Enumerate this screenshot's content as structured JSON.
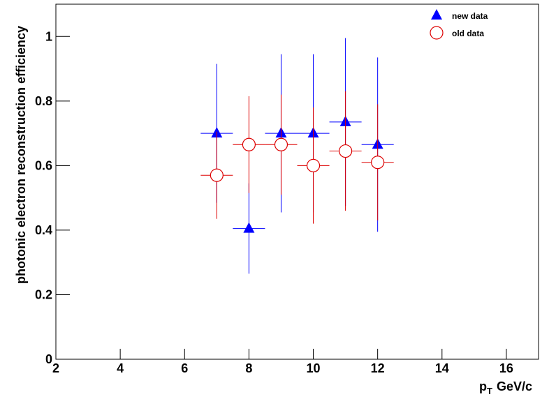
{
  "chart_data": {
    "type": "errorbar-scatter",
    "xlabel": {
      "text": "p",
      "subscript": "T",
      "suffix": "GeV/c"
    },
    "ylabel": "photonic electron reconstruction efficiency",
    "xlim": [
      2,
      17
    ],
    "ylim": [
      0,
      1.1
    ],
    "xticks": [
      2,
      4,
      6,
      8,
      10,
      12,
      14,
      16
    ],
    "yticks": [
      0,
      0.2,
      0.4,
      0.6,
      0.8,
      1
    ],
    "legend": "top-right",
    "series": [
      {
        "name": "new data",
        "color": "#0000ff",
        "marker": "triangle",
        "x": [
          7,
          8,
          9,
          10,
          11,
          12
        ],
        "x_errors": [
          0.5,
          0.5,
          0.5,
          0.5,
          0.5,
          0.5
        ],
        "values": [
          0.7,
          0.405,
          0.7,
          0.7,
          0.735,
          0.665
        ],
        "errors": [
          0.215,
          0.14,
          0.245,
          0.245,
          0.26,
          0.27
        ]
      },
      {
        "name": "old data",
        "color": "#dd0000",
        "marker": "open-circle",
        "x": [
          7,
          8,
          9,
          10,
          11,
          12
        ],
        "x_errors": [
          0.5,
          0.5,
          0.5,
          0.5,
          0.5,
          0.5
        ],
        "values": [
          0.57,
          0.665,
          0.665,
          0.6,
          0.645,
          0.61
        ],
        "errors": [
          0.135,
          0.15,
          0.155,
          0.18,
          0.185,
          0.18
        ]
      }
    ]
  }
}
